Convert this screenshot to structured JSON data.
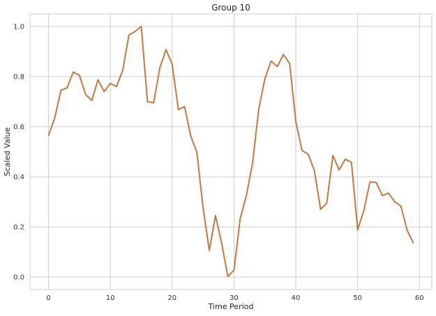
{
  "chart_data": {
    "type": "line",
    "title": "Group 10",
    "xlabel": "Time Period",
    "ylabel": "Scaled Value",
    "xlim": [
      -3,
      62
    ],
    "ylim": [
      -0.05,
      1.05
    ],
    "xticks": [
      0,
      10,
      20,
      30,
      40,
      50,
      60
    ],
    "yticks": [
      0.0,
      0.2,
      0.4,
      0.6,
      0.8,
      1.0
    ],
    "xtick_labels": [
      "0",
      "10",
      "20",
      "30",
      "40",
      "50",
      "60"
    ],
    "ytick_labels": [
      "0.0",
      "0.2",
      "0.4",
      "0.6",
      "0.8",
      "1.0"
    ],
    "grid": true,
    "series": [
      {
        "color": "#c47840",
        "x": [
          0,
          1,
          2,
          3,
          4,
          5,
          6,
          7,
          8,
          9,
          10,
          11,
          12,
          13,
          14,
          15,
          16,
          17,
          18,
          19,
          20,
          21,
          22,
          23,
          24,
          25,
          26,
          27,
          28,
          29,
          30,
          31,
          32,
          33,
          34,
          35,
          36,
          37,
          38,
          39,
          40,
          41,
          42,
          43,
          44,
          45,
          46,
          47,
          48,
          49,
          50,
          51,
          52,
          53,
          54,
          55,
          56,
          57,
          58,
          59
        ],
        "y": [
          0.565,
          0.635,
          0.745,
          0.755,
          0.818,
          0.805,
          0.728,
          0.705,
          0.787,
          0.74,
          0.773,
          0.76,
          0.825,
          0.966,
          0.98,
          1.0,
          0.7,
          0.695,
          0.835,
          0.908,
          0.848,
          0.668,
          0.68,
          0.563,
          0.497,
          0.275,
          0.106,
          0.245,
          0.135,
          0.002,
          0.028,
          0.233,
          0.325,
          0.455,
          0.67,
          0.792,
          0.862,
          0.84,
          0.888,
          0.852,
          0.62,
          0.505,
          0.49,
          0.425,
          0.27,
          0.295,
          0.485,
          0.428,
          0.47,
          0.458,
          0.188,
          0.265,
          0.38,
          0.377,
          0.325,
          0.335,
          0.3,
          0.283,
          0.187,
          0.136
        ]
      }
    ]
  }
}
